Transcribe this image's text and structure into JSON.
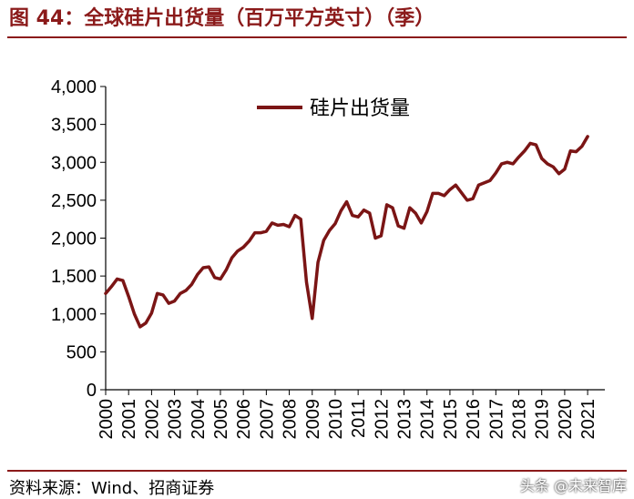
{
  "title": "图 44：全球硅片出货量（百万平方英寸）（季）",
  "source": "资料来源：Wind、招商证券",
  "watermark": "头条 @未来智库",
  "colors": {
    "accent": "#8B1A1A",
    "line": "#7B1515",
    "axis": "#000000"
  },
  "chart_data": {
    "type": "line",
    "title": "",
    "xlabel": "",
    "ylabel": "",
    "ylim": [
      0,
      4000
    ],
    "yticks": [
      0,
      500,
      1000,
      1500,
      2000,
      2500,
      3000,
      3500,
      4000
    ],
    "ytick_labels": [
      "0",
      "500",
      "1,000",
      "1,500",
      "2,000",
      "2,500",
      "3,000",
      "3,500",
      "4,000"
    ],
    "xlim": [
      2000,
      2021.75
    ],
    "xticks": [
      2000,
      2001,
      2002,
      2003,
      2004,
      2005,
      2006,
      2007,
      2008,
      2009,
      2010,
      2011,
      2012,
      2013,
      2014,
      2015,
      2016,
      2017,
      2018,
      2019,
      2020,
      2021
    ],
    "xtick_labels": [
      "2000",
      "2001",
      "2002",
      "2003",
      "2004",
      "2005",
      "2006",
      "2007",
      "2008",
      "2009",
      "2010",
      "2011",
      "2012",
      "2013",
      "2014",
      "2015",
      "2016",
      "2017",
      "2018",
      "2019",
      "2020",
      "2021"
    ],
    "grid": false,
    "legend": {
      "placement": "top-center"
    },
    "series": [
      {
        "name": "硅片出货量",
        "x": [
          2000.0,
          2000.25,
          2000.5,
          2000.75,
          2001.0,
          2001.25,
          2001.5,
          2001.75,
          2002.0,
          2002.25,
          2002.5,
          2002.75,
          2003.0,
          2003.25,
          2003.5,
          2003.75,
          2004.0,
          2004.25,
          2004.5,
          2004.75,
          2005.0,
          2005.25,
          2005.5,
          2005.75,
          2006.0,
          2006.25,
          2006.5,
          2006.75,
          2007.0,
          2007.25,
          2007.5,
          2007.75,
          2008.0,
          2008.25,
          2008.5,
          2008.75,
          2009.0,
          2009.25,
          2009.5,
          2009.75,
          2010.0,
          2010.25,
          2010.5,
          2010.75,
          2011.0,
          2011.25,
          2011.5,
          2011.75,
          2012.0,
          2012.25,
          2012.5,
          2012.75,
          2013.0,
          2013.25,
          2013.5,
          2013.75,
          2014.0,
          2014.25,
          2014.5,
          2014.75,
          2015.0,
          2015.25,
          2015.5,
          2015.75,
          2016.0,
          2016.25,
          2016.5,
          2016.75,
          2017.0,
          2017.25,
          2017.5,
          2017.75,
          2018.0,
          2018.25,
          2018.5,
          2018.75,
          2019.0,
          2019.25,
          2019.5,
          2019.75,
          2020.0,
          2020.25,
          2020.5,
          2020.75,
          2021.0
        ],
        "values": [
          1270,
          1360,
          1460,
          1440,
          1230,
          1000,
          830,
          880,
          1010,
          1270,
          1250,
          1140,
          1170,
          1270,
          1310,
          1390,
          1520,
          1610,
          1620,
          1480,
          1460,
          1580,
          1740,
          1830,
          1880,
          1960,
          2070,
          2070,
          2090,
          2200,
          2170,
          2180,
          2150,
          2300,
          2250,
          1420,
          940,
          1680,
          1970,
          2100,
          2190,
          2360,
          2480,
          2300,
          2280,
          2370,
          2330,
          2000,
          2030,
          2440,
          2400,
          2160,
          2130,
          2400,
          2330,
          2200,
          2350,
          2590,
          2590,
          2560,
          2640,
          2700,
          2600,
          2500,
          2520,
          2700,
          2730,
          2760,
          2860,
          2980,
          3000,
          2980,
          3070,
          3150,
          3250,
          3230,
          3050,
          2980,
          2940,
          2850,
          2910,
          3150,
          3140,
          3210,
          3340
        ]
      }
    ]
  }
}
